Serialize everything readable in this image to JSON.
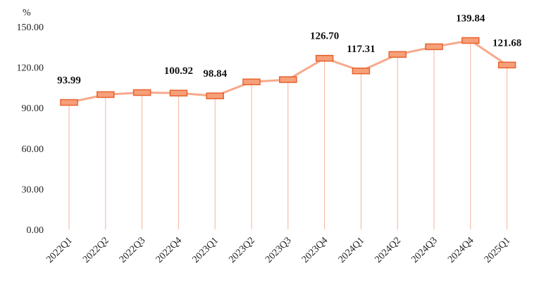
{
  "chart_data": {
    "type": "line",
    "unit": "%",
    "categories": [
      "2022Q1",
      "2022Q2",
      "2022Q3",
      "2022Q4",
      "2023Q1",
      "2023Q2",
      "2023Q3",
      "2023Q4",
      "2024Q1",
      "2024Q2",
      "2024Q3",
      "2024Q4",
      "2025Q1"
    ],
    "series": [
      {
        "values": [
          93.99,
          99.8,
          101.3,
          100.92,
          98.84,
          109.2,
          110.9,
          126.7,
          117.31,
          129.5,
          135.2,
          139.84,
          121.68
        ]
      }
    ],
    "data_labels": [
      {
        "index": 0,
        "text": "93.99"
      },
      {
        "index": 3,
        "text": "100.92"
      },
      {
        "index": 4,
        "text": "98.84"
      },
      {
        "index": 7,
        "text": "126.70"
      },
      {
        "index": 8,
        "text": "117.31"
      },
      {
        "index": 11,
        "text": "139.84"
      },
      {
        "index": 12,
        "text": "121.68"
      }
    ],
    "ylim": [
      0,
      150
    ],
    "yticks": [
      "0.00",
      "30.00",
      "60.00",
      "90.00",
      "120.00",
      "150.00"
    ],
    "grid": false,
    "colors": {
      "line": "#f7a98b",
      "marker_fill": "#f6a07a",
      "marker_stroke": "#e8622f",
      "drop_line": "#f2b49a"
    }
  }
}
